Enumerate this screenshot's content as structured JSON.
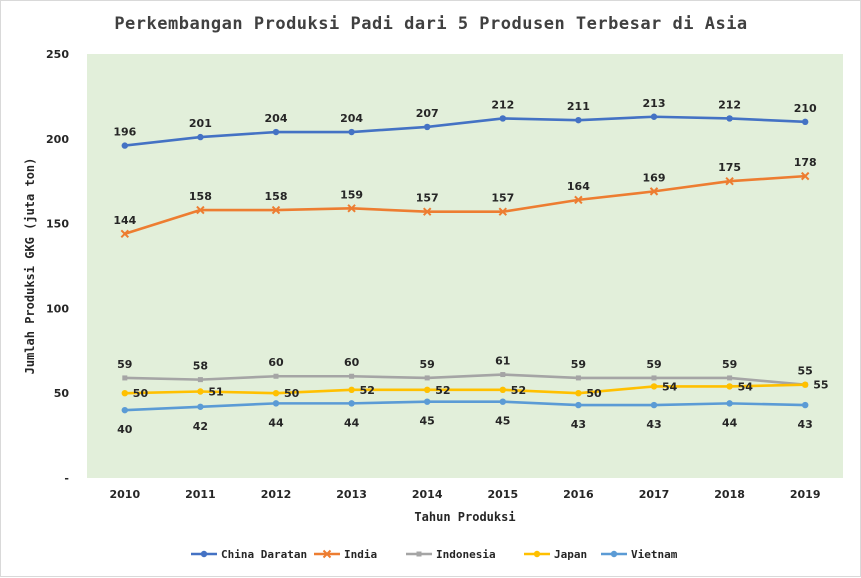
{
  "chart_data": {
    "type": "line",
    "title": "Perkembangan Produksi Padi dari 5 Produsen Terbesar di Asia",
    "xlabel": "Tahun Produksi",
    "ylabel": "Jumlah Produksi GKG (juta ton)",
    "categories": [
      "2010",
      "2011",
      "2012",
      "2013",
      "2014",
      "2015",
      "2016",
      "2017",
      "2018",
      "2019"
    ],
    "ylim": [
      0,
      250
    ],
    "yticks": [
      {
        "value": 0,
        "label": "-"
      },
      {
        "value": 50,
        "label": "50"
      },
      {
        "value": 100,
        "label": "100"
      },
      {
        "value": 150,
        "label": "150"
      },
      {
        "value": 200,
        "label": "200"
      },
      {
        "value": 250,
        "label": "250"
      }
    ],
    "grid": false,
    "plot_background": "#e2efda",
    "legend_position": "bottom",
    "series": [
      {
        "name": "China Daratan",
        "color": "#4472c4",
        "marker": "circle",
        "label_pos": "above",
        "values": [
          196,
          201,
          204,
          204,
          207,
          212,
          211,
          213,
          212,
          210
        ]
      },
      {
        "name": "India",
        "color": "#ed7d31",
        "marker": "x",
        "label_pos": "above",
        "values": [
          144,
          158,
          158,
          159,
          157,
          157,
          164,
          169,
          175,
          178
        ]
      },
      {
        "name": "Indonesia",
        "color": "#a5a5a5",
        "marker": "square",
        "label_pos": "above",
        "values": [
          59,
          58,
          60,
          60,
          59,
          61,
          59,
          59,
          59,
          55
        ]
      },
      {
        "name": "Japan",
        "color": "#ffc000",
        "marker": "circle",
        "label_pos": "right",
        "values": [
          50,
          51,
          50,
          52,
          52,
          52,
          50,
          54,
          54,
          55
        ]
      },
      {
        "name": "Vietnam",
        "color": "#5b9bd5",
        "marker": "circle",
        "label_pos": "below",
        "values": [
          40,
          42,
          44,
          44,
          45,
          45,
          43,
          43,
          44,
          43
        ]
      }
    ]
  }
}
